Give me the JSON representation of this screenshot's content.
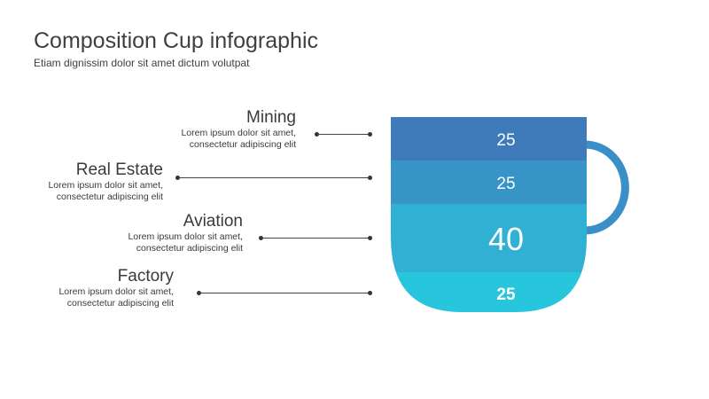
{
  "header": {
    "title": "Composition Cup infographic",
    "subtitle": "Etiam dignissim dolor sit amet dictum volutpat"
  },
  "segments": [
    {
      "name": "Mining",
      "desc_line1": "Lorem ipsum dolor sit amet,",
      "desc_line2": "consectetur adipiscing elit",
      "value": "25",
      "color": "#3f7bbb"
    },
    {
      "name": "Real Estate",
      "desc_line1": "Lorem ipsum dolor sit amet,",
      "desc_line2": "consectetur adipiscing elit",
      "value": "25",
      "color": "#3794c6"
    },
    {
      "name": "Aviation",
      "desc_line1": "Lorem ipsum dolor sit amet,",
      "desc_line2": "consectetur adipiscing elit",
      "value": "40",
      "color": "#30b0d2"
    },
    {
      "name": "Factory",
      "desc_line1": "Lorem ipsum dolor sit amet,",
      "desc_line2": "consectetur adipiscing elit",
      "value": "25",
      "color": "#28c6dd"
    }
  ],
  "handle_color": "#3a8fc8"
}
